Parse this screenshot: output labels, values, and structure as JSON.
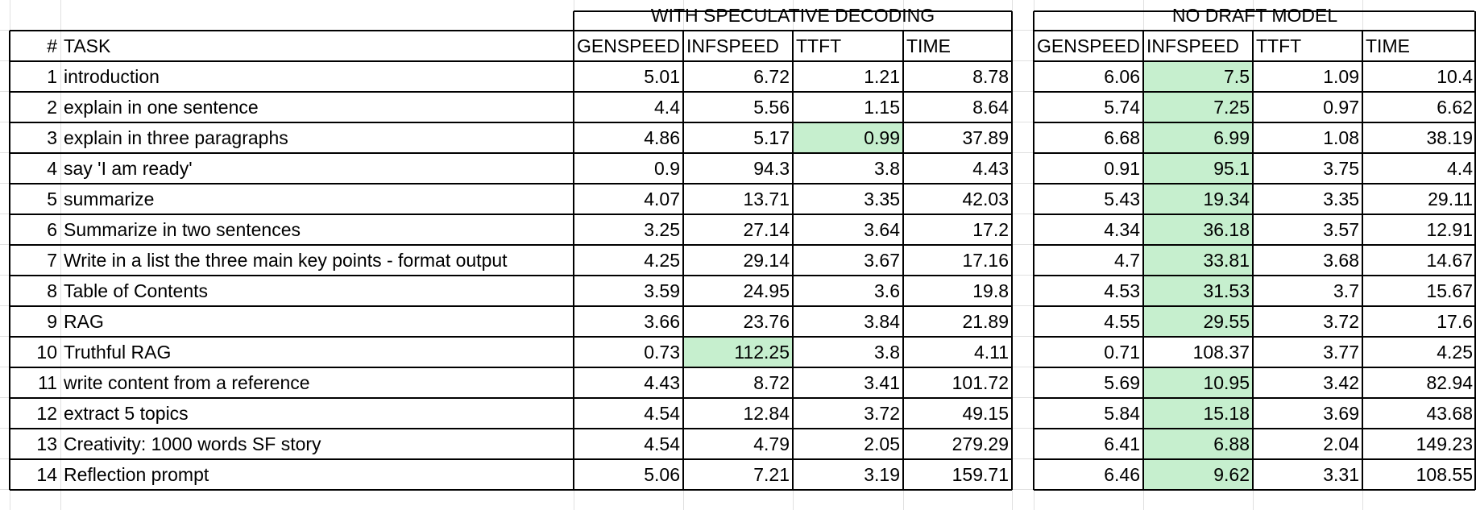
{
  "sections": {
    "with_speculative": "WITH SPECULATIVE DECODING",
    "no_draft": "NO DRAFT MODEL"
  },
  "headers": {
    "index": "#",
    "task": "TASK",
    "metrics": [
      "GENSPEED",
      "INFSPEED",
      "TTFT",
      "TIME"
    ]
  },
  "highlight_color": "#c6efce",
  "rows": [
    {
      "n": "1",
      "task": "introduction",
      "spec": [
        "5.01",
        "6.72",
        "1.21",
        "8.78"
      ],
      "nodraft": [
        "6.06",
        "7.5",
        "1.09",
        "10.4"
      ],
      "hl_spec": [],
      "hl_nodraft": [
        1
      ]
    },
    {
      "n": "2",
      "task": "explain in one sentence",
      "spec": [
        "4.4",
        "5.56",
        "1.15",
        "8.64"
      ],
      "nodraft": [
        "5.74",
        "7.25",
        "0.97",
        "6.62"
      ],
      "hl_spec": [],
      "hl_nodraft": [
        1
      ]
    },
    {
      "n": "3",
      "task": "explain in three paragraphs",
      "spec": [
        "4.86",
        "5.17",
        "0.99",
        "37.89"
      ],
      "nodraft": [
        "6.68",
        "6.99",
        "1.08",
        "38.19"
      ],
      "hl_spec": [
        2
      ],
      "hl_nodraft": [
        1
      ]
    },
    {
      "n": "4",
      "task": "say 'I am ready'",
      "spec": [
        "0.9",
        "94.3",
        "3.8",
        "4.43"
      ],
      "nodraft": [
        "0.91",
        "95.1",
        "3.75",
        "4.4"
      ],
      "hl_spec": [],
      "hl_nodraft": [
        1
      ]
    },
    {
      "n": "5",
      "task": "summarize",
      "spec": [
        "4.07",
        "13.71",
        "3.35",
        "42.03"
      ],
      "nodraft": [
        "5.43",
        "19.34",
        "3.35",
        "29.11"
      ],
      "hl_spec": [],
      "hl_nodraft": [
        1
      ]
    },
    {
      "n": "6",
      "task": "Summarize in two sentences",
      "spec": [
        "3.25",
        "27.14",
        "3.64",
        "17.2"
      ],
      "nodraft": [
        "4.34",
        "36.18",
        "3.57",
        "12.91"
      ],
      "hl_spec": [],
      "hl_nodraft": [
        1
      ]
    },
    {
      "n": "7",
      "task": "Write in a list the three main key points -  format output",
      "spec": [
        "4.25",
        "29.14",
        "3.67",
        "17.16"
      ],
      "nodraft": [
        "4.7",
        "33.81",
        "3.68",
        "14.67"
      ],
      "hl_spec": [],
      "hl_nodraft": [
        1
      ]
    },
    {
      "n": "8",
      "task": "Table of Contents",
      "spec": [
        "3.59",
        "24.95",
        "3.6",
        "19.8"
      ],
      "nodraft": [
        "4.53",
        "31.53",
        "3.7",
        "15.67"
      ],
      "hl_spec": [],
      "hl_nodraft": [
        1
      ]
    },
    {
      "n": "9",
      "task": "RAG",
      "spec": [
        "3.66",
        "23.76",
        "3.84",
        "21.89"
      ],
      "nodraft": [
        "4.55",
        "29.55",
        "3.72",
        "17.6"
      ],
      "hl_spec": [],
      "hl_nodraft": [
        1
      ]
    },
    {
      "n": "10",
      "task": "Truthful RAG",
      "spec": [
        "0.73",
        "112.25",
        "3.8",
        "4.11"
      ],
      "nodraft": [
        "0.71",
        "108.37",
        "3.77",
        "4.25"
      ],
      "hl_spec": [
        1
      ],
      "hl_nodraft": []
    },
    {
      "n": "11",
      "task": "write content from a reference",
      "spec": [
        "4.43",
        "8.72",
        "3.41",
        "101.72"
      ],
      "nodraft": [
        "5.69",
        "10.95",
        "3.42",
        "82.94"
      ],
      "hl_spec": [],
      "hl_nodraft": [
        1
      ]
    },
    {
      "n": "12",
      "task": "extract 5 topics",
      "spec": [
        "4.54",
        "12.84",
        "3.72",
        "49.15"
      ],
      "nodraft": [
        "5.84",
        "15.18",
        "3.69",
        "43.68"
      ],
      "hl_spec": [],
      "hl_nodraft": [
        1
      ]
    },
    {
      "n": "13",
      "task": "Creativity: 1000 words SF story",
      "spec": [
        "4.54",
        "4.79",
        "2.05",
        "279.29"
      ],
      "nodraft": [
        "6.41",
        "6.88",
        "2.04",
        "149.23"
      ],
      "hl_spec": [],
      "hl_nodraft": [
        1
      ]
    },
    {
      "n": "14",
      "task": "Reflection prompt",
      "spec": [
        "5.06",
        "7.21",
        "3.19",
        "159.71"
      ],
      "nodraft": [
        "6.46",
        "9.62",
        "3.31",
        "108.55"
      ],
      "hl_spec": [],
      "hl_nodraft": [
        1
      ]
    }
  ]
}
